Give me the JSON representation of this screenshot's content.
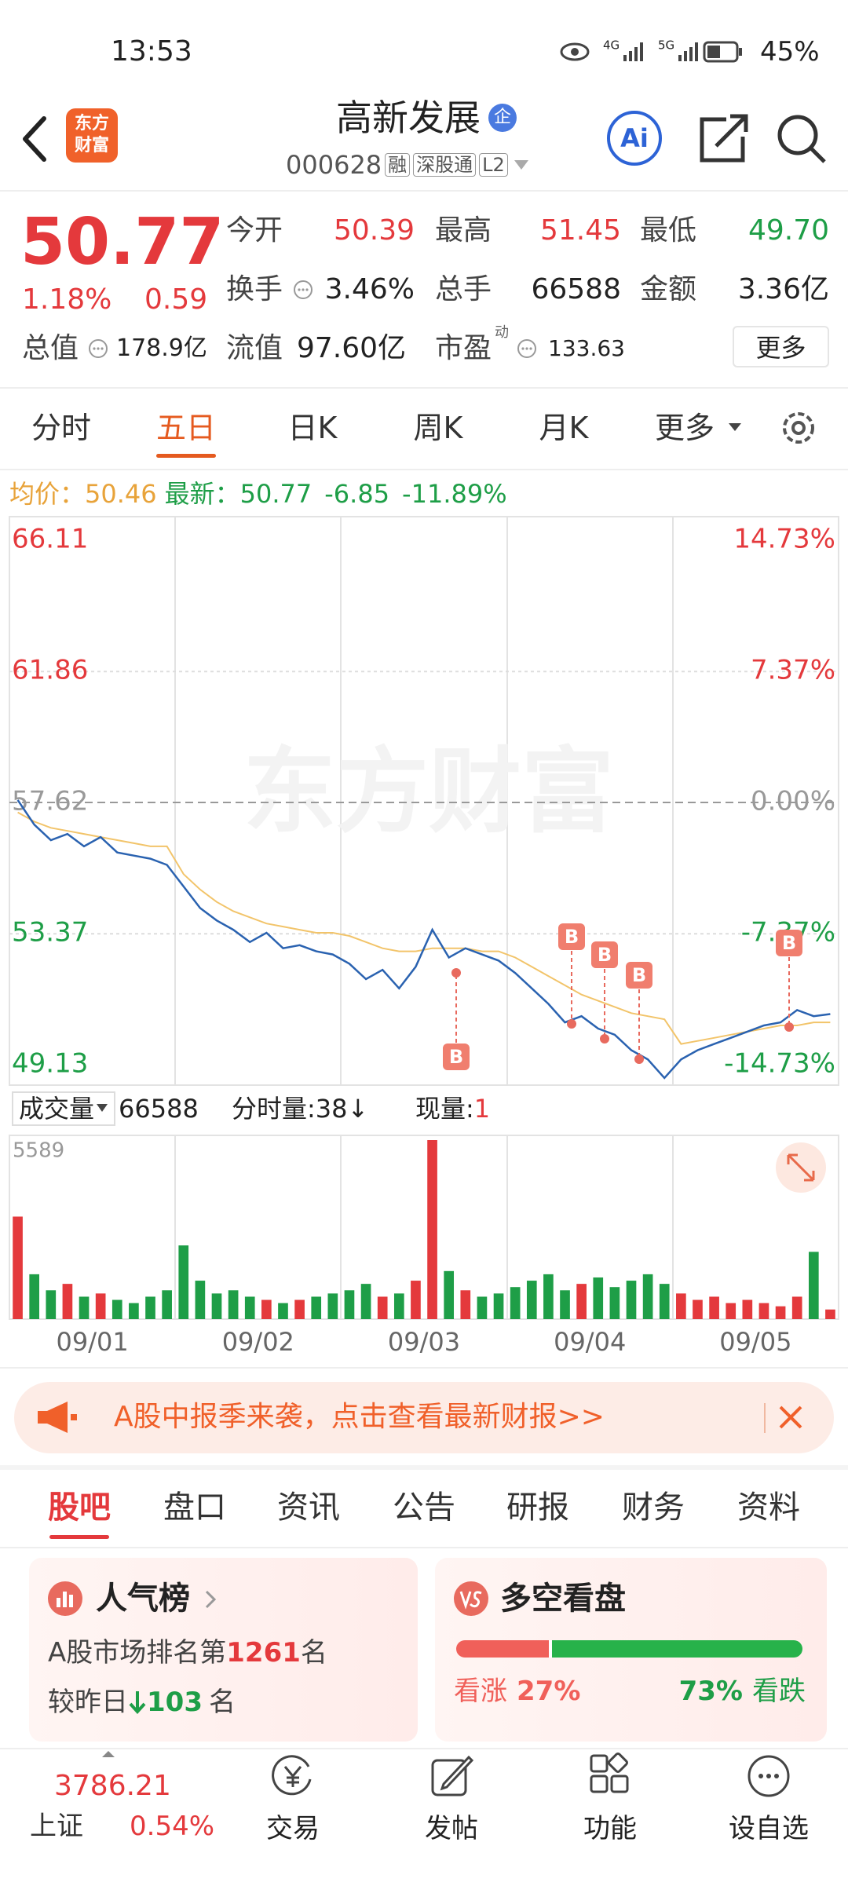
{
  "status_bar": {
    "time": "13:53",
    "network": [
      "4G",
      "5G"
    ],
    "battery": "45%"
  },
  "header": {
    "logo": [
      "东方",
      "财富"
    ],
    "title": "高新发展",
    "badge": "企",
    "code": "000628",
    "tags": [
      "融",
      "深股通",
      "L2"
    ],
    "ai": "Ai"
  },
  "quote": {
    "price": "50.77",
    "change_pct": "1.18%",
    "change": "0.59",
    "fields": [
      {
        "label": "今开",
        "value": "50.39"
      },
      {
        "label": "最高",
        "value": "51.45"
      },
      {
        "label": "最低",
        "value": "49.70"
      },
      {
        "label": "换手",
        "value": "3.46%"
      },
      {
        "label": "总手",
        "value": "66588"
      },
      {
        "label": "金额",
        "value": "3.36亿"
      },
      {
        "label": "总值",
        "value": "178.9亿"
      },
      {
        "label": "流值",
        "value": "97.60亿"
      },
      {
        "label": "市盈",
        "label_sup": "动",
        "value": "133.63"
      }
    ],
    "more": "更多"
  },
  "tabs": {
    "items": [
      "分时",
      "五日",
      "日K",
      "周K",
      "月K",
      "更多"
    ],
    "active": 1
  },
  "info_line": {
    "avg_label": "均价：",
    "avg": "50.46",
    "latest_label": "最新：",
    "latest": "50.77",
    "change": "-6.85",
    "change_pct": "-11.89%"
  },
  "chart": {
    "type": "line",
    "watermark": "东方财富",
    "categories": [
      "09/01",
      "09/02",
      "09/03",
      "09/04",
      "09/05"
    ],
    "ylim": [
      49.13,
      66.11
    ],
    "yticks": [
      66.11,
      61.86,
      57.62,
      53.37,
      49.13
    ],
    "y2lim": [
      -14.73,
      14.73
    ],
    "y2ticks": [
      {
        "value": 14.73,
        "label": "14.73%"
      },
      {
        "value": 7.37,
        "label": "7.37%"
      },
      {
        "value": 0,
        "label": "0.00%"
      },
      {
        "value": -7.37,
        "label": "-7.37%"
      },
      {
        "value": -14.73,
        "label": "-14.73%"
      }
    ],
    "series": [
      {
        "color": "#2a62b0",
        "values": [
          57.7,
          56.9,
          56.4,
          56.6,
          56.2,
          56.5,
          56.0,
          55.9,
          55.8,
          55.6,
          54.9,
          54.2,
          53.8,
          53.5,
          53.1,
          53.4,
          52.9,
          53.0,
          52.8,
          52.7,
          52.4,
          51.9,
          52.2,
          51.6,
          52.3,
          53.5,
          52.6,
          52.9,
          52.7,
          52.5,
          52.1,
          51.6,
          51.1,
          50.5,
          50.7,
          50.3,
          50.1,
          49.6,
          49.3,
          48.7,
          49.3,
          49.6,
          49.8,
          50.0,
          50.2,
          50.4,
          50.5,
          50.9,
          50.7,
          50.77
        ]
      },
      {
        "color": "#f2c46a",
        "values": [
          57.3,
          57.0,
          56.8,
          56.7,
          56.6,
          56.5,
          56.4,
          56.3,
          56.2,
          56.2,
          55.3,
          54.8,
          54.4,
          54.1,
          53.9,
          53.7,
          53.6,
          53.5,
          53.4,
          53.4,
          53.3,
          53.1,
          52.9,
          52.8,
          52.8,
          52.9,
          52.9,
          52.9,
          52.8,
          52.8,
          52.6,
          52.3,
          52.0,
          51.7,
          51.4,
          51.2,
          51.0,
          50.8,
          50.7,
          50.6,
          49.8,
          49.9,
          50.0,
          50.1,
          50.2,
          50.3,
          50.4,
          50.4,
          50.5,
          50.5
        ]
      }
    ],
    "markers": [
      "B",
      "B",
      "B",
      "B",
      "B"
    ]
  },
  "volume": {
    "label": "成交量",
    "total": "66588",
    "tick_label": "分时量:",
    "tick_value": "38↓",
    "current_label": "现量:",
    "current": "1",
    "ylim": [
      0,
      5589
    ],
    "yticks": [
      5589
    ],
    "up_color": "#e4393c",
    "down_color": "#1e9e47",
    "values": [
      3200,
      1400,
      900,
      1100,
      700,
      800,
      600,
      500,
      700,
      900,
      2300,
      1200,
      800,
      900,
      700,
      600,
      500,
      600,
      700,
      800,
      900,
      1100,
      700,
      800,
      1200,
      5589,
      1500,
      900,
      700,
      800,
      1000,
      1200,
      1400,
      900,
      1100,
      1300,
      1000,
      1200,
      1400,
      1100,
      800,
      600,
      700,
      500,
      600,
      500,
      400,
      700,
      2100,
      300
    ]
  },
  "banner": {
    "text": "A股中报季来袭，点击查看最新财报>>"
  },
  "sub_tabs": {
    "items": [
      "股吧",
      "盘口",
      "资讯",
      "公告",
      "研报",
      "财务",
      "资料"
    ],
    "active": 0
  },
  "popularity": {
    "title": "人气榜",
    "rank_prefix": "A股市场排名第",
    "rank": "1261",
    "rank_suffix": "名",
    "change_prefix": "较昨日",
    "change": "103",
    "change_suffix": "名"
  },
  "sentiment": {
    "title": "多空看盘",
    "bull_label": "看涨",
    "bull": {
      "value": 27,
      "label": "27%"
    },
    "bear": {
      "value": 73,
      "label": "73%"
    },
    "bear_label": "看跌"
  },
  "bottom_nav": {
    "index_value": "3786.21",
    "index_name": "上证",
    "index_change": "0.54%",
    "items": [
      "交易",
      "发帖",
      "功能",
      "设自选"
    ]
  }
}
